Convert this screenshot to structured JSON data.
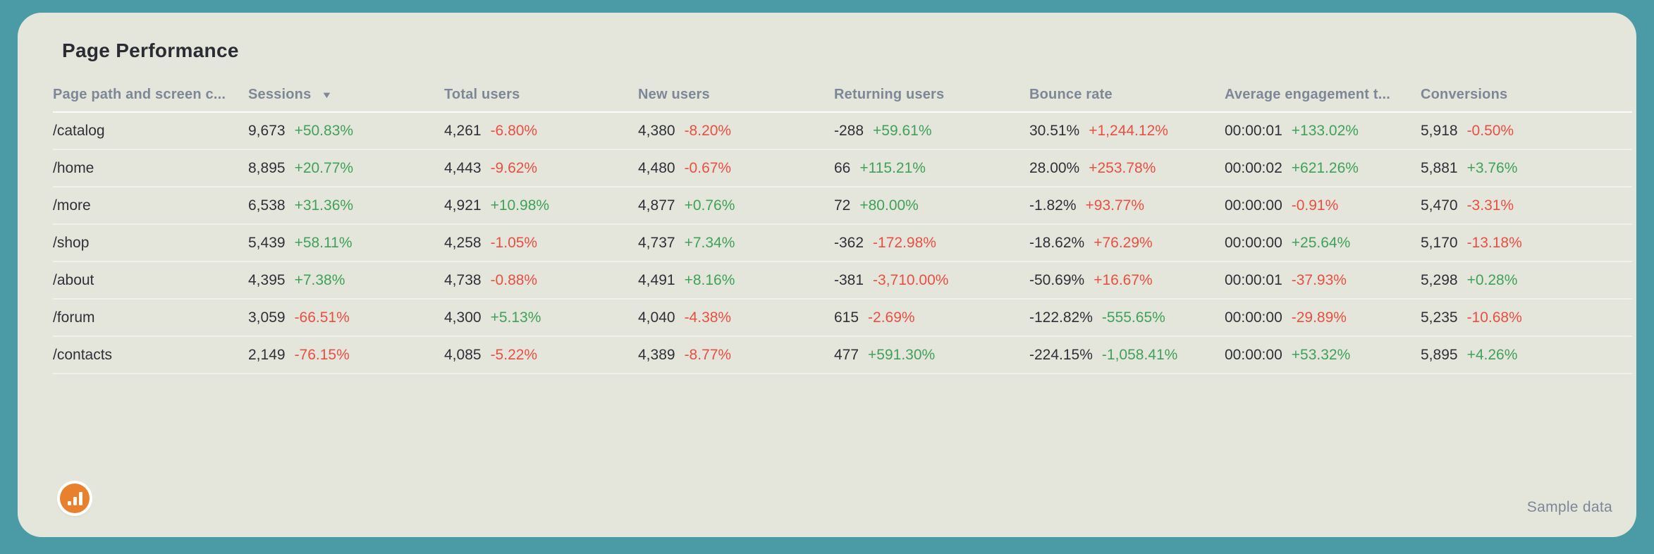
{
  "title": "Page Performance",
  "footer": {
    "watermark": "Sample data"
  },
  "colors": {
    "background": "#4A9BA5",
    "card": "#E4E6DB",
    "title_text": "#2B2C33",
    "header_text": "#7E8796",
    "body_text": "#2F3038",
    "positive": "#3FA15A",
    "negative": "#EA4F41",
    "logo_orange": "#E8802D"
  },
  "chart_data": {
    "type": "table",
    "title": "Page Performance",
    "columns": [
      {
        "key": "page_path",
        "label": "Page path and screen c...",
        "sort": null
      },
      {
        "key": "sessions",
        "label": "Sessions",
        "sort": "desc"
      },
      {
        "key": "total_users",
        "label": "Total users",
        "sort": null
      },
      {
        "key": "new_users",
        "label": "New users",
        "sort": null
      },
      {
        "key": "returning_users",
        "label": "Returning users",
        "sort": null
      },
      {
        "key": "bounce_rate",
        "label": "Bounce rate",
        "sort": null
      },
      {
        "key": "avg_engagement_time",
        "label": "Average engagement t...",
        "sort": null
      },
      {
        "key": "conversions",
        "label": "Conversions",
        "sort": null
      }
    ],
    "rows": [
      {
        "path": "/catalog",
        "cells": [
          {
            "value": "9,673",
            "change": "+50.83%",
            "tone": "positive"
          },
          {
            "value": "4,261",
            "change": "-6.80%",
            "tone": "negative"
          },
          {
            "value": "4,380",
            "change": "-8.20%",
            "tone": "negative"
          },
          {
            "value": "-288",
            "change": "+59.61%",
            "tone": "positive"
          },
          {
            "value": "30.51%",
            "change": "+1,244.12%",
            "tone": "negative"
          },
          {
            "value": "00:00:01",
            "change": "+133.02%",
            "tone": "positive"
          },
          {
            "value": "5,918",
            "change": "-0.50%",
            "tone": "negative"
          }
        ]
      },
      {
        "path": "/home",
        "cells": [
          {
            "value": "8,895",
            "change": "+20.77%",
            "tone": "positive"
          },
          {
            "value": "4,443",
            "change": "-9.62%",
            "tone": "negative"
          },
          {
            "value": "4,480",
            "change": "-0.67%",
            "tone": "negative"
          },
          {
            "value": "66",
            "change": "+115.21%",
            "tone": "positive"
          },
          {
            "value": "28.00%",
            "change": "+253.78%",
            "tone": "negative"
          },
          {
            "value": "00:00:02",
            "change": "+621.26%",
            "tone": "positive"
          },
          {
            "value": "5,881",
            "change": "+3.76%",
            "tone": "positive"
          }
        ]
      },
      {
        "path": "/more",
        "cells": [
          {
            "value": "6,538",
            "change": "+31.36%",
            "tone": "positive"
          },
          {
            "value": "4,921",
            "change": "+10.98%",
            "tone": "positive"
          },
          {
            "value": "4,877",
            "change": "+0.76%",
            "tone": "positive"
          },
          {
            "value": "72",
            "change": "+80.00%",
            "tone": "positive"
          },
          {
            "value": "-1.82%",
            "change": "+93.77%",
            "tone": "negative"
          },
          {
            "value": "00:00:00",
            "change": "-0.91%",
            "tone": "negative"
          },
          {
            "value": "5,470",
            "change": "-3.31%",
            "tone": "negative"
          }
        ]
      },
      {
        "path": "/shop",
        "cells": [
          {
            "value": "5,439",
            "change": "+58.11%",
            "tone": "positive"
          },
          {
            "value": "4,258",
            "change": "-1.05%",
            "tone": "negative"
          },
          {
            "value": "4,737",
            "change": "+7.34%",
            "tone": "positive"
          },
          {
            "value": "-362",
            "change": "-172.98%",
            "tone": "negative"
          },
          {
            "value": "-18.62%",
            "change": "+76.29%",
            "tone": "negative"
          },
          {
            "value": "00:00:00",
            "change": "+25.64%",
            "tone": "positive"
          },
          {
            "value": "5,170",
            "change": "-13.18%",
            "tone": "negative"
          }
        ]
      },
      {
        "path": "/about",
        "cells": [
          {
            "value": "4,395",
            "change": "+7.38%",
            "tone": "positive"
          },
          {
            "value": "4,738",
            "change": "-0.88%",
            "tone": "negative"
          },
          {
            "value": "4,491",
            "change": "+8.16%",
            "tone": "positive"
          },
          {
            "value": "-381",
            "change": "-3,710.00%",
            "tone": "negative"
          },
          {
            "value": "-50.69%",
            "change": "+16.67%",
            "tone": "negative"
          },
          {
            "value": "00:00:01",
            "change": "-37.93%",
            "tone": "negative"
          },
          {
            "value": "5,298",
            "change": "+0.28%",
            "tone": "positive"
          }
        ]
      },
      {
        "path": "/forum",
        "cells": [
          {
            "value": "3,059",
            "change": "-66.51%",
            "tone": "negative"
          },
          {
            "value": "4,300",
            "change": "+5.13%",
            "tone": "positive"
          },
          {
            "value": "4,040",
            "change": "-4.38%",
            "tone": "negative"
          },
          {
            "value": "615",
            "change": "-2.69%",
            "tone": "negative"
          },
          {
            "value": "-122.82%",
            "change": "-555.65%",
            "tone": "positive"
          },
          {
            "value": "00:00:00",
            "change": "-29.89%",
            "tone": "negative"
          },
          {
            "value": "5,235",
            "change": "-10.68%",
            "tone": "negative"
          }
        ]
      },
      {
        "path": "/contacts",
        "cells": [
          {
            "value": "2,149",
            "change": "-76.15%",
            "tone": "negative"
          },
          {
            "value": "4,085",
            "change": "-5.22%",
            "tone": "negative"
          },
          {
            "value": "4,389",
            "change": "-8.77%",
            "tone": "negative"
          },
          {
            "value": "477",
            "change": "+591.30%",
            "tone": "positive"
          },
          {
            "value": "-224.15%",
            "change": "-1,058.41%",
            "tone": "positive"
          },
          {
            "value": "00:00:00",
            "change": "+53.32%",
            "tone": "positive"
          },
          {
            "value": "5,895",
            "change": "+4.26%",
            "tone": "positive"
          }
        ]
      }
    ]
  }
}
